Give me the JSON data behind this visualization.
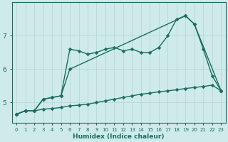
{
  "xlabel": "Humidex (Indice chaleur)",
  "bg_color": "#ceeaea",
  "grid_color": "#b8d8d8",
  "line_color": "#1a6e60",
  "x_ticks": [
    0,
    1,
    2,
    3,
    4,
    5,
    6,
    7,
    8,
    9,
    10,
    11,
    12,
    13,
    14,
    15,
    16,
    17,
    18,
    19,
    20,
    21,
    22,
    23
  ],
  "y_ticks": [
    5,
    6,
    7
  ],
  "xlim": [
    -0.5,
    23.5
  ],
  "ylim": [
    4.4,
    8.0
  ],
  "line1_x": [
    0,
    1,
    2,
    3,
    4,
    5,
    6,
    7,
    8,
    9,
    10,
    11,
    12,
    13,
    14,
    15,
    16,
    17,
    18,
    19,
    20,
    21,
    22,
    23
  ],
  "line1_y": [
    4.65,
    4.75,
    4.75,
    4.8,
    4.82,
    4.85,
    4.9,
    4.92,
    4.95,
    5.0,
    5.05,
    5.1,
    5.15,
    5.2,
    5.25,
    5.28,
    5.32,
    5.35,
    5.38,
    5.42,
    5.45,
    5.48,
    5.52,
    5.35
  ],
  "line2_x": [
    0,
    1,
    2,
    3,
    4,
    5,
    6,
    7,
    8,
    9,
    10,
    11,
    12,
    13,
    14,
    15,
    16,
    17,
    18,
    19,
    20,
    21,
    22,
    23
  ],
  "line2_y": [
    4.65,
    4.75,
    4.75,
    5.1,
    5.15,
    5.2,
    6.6,
    6.55,
    6.45,
    6.5,
    6.6,
    6.65,
    6.55,
    6.6,
    6.5,
    6.5,
    6.65,
    7.0,
    7.5,
    7.6,
    7.35,
    6.6,
    5.8,
    5.35
  ],
  "line3_x": [
    0,
    1,
    2,
    3,
    4,
    5,
    6,
    19,
    20,
    23
  ],
  "line3_y": [
    4.65,
    4.75,
    4.75,
    5.1,
    5.15,
    5.2,
    6.0,
    7.6,
    7.35,
    5.35
  ],
  "marker": "D",
  "markersize": 2.5,
  "linewidth": 1.0
}
